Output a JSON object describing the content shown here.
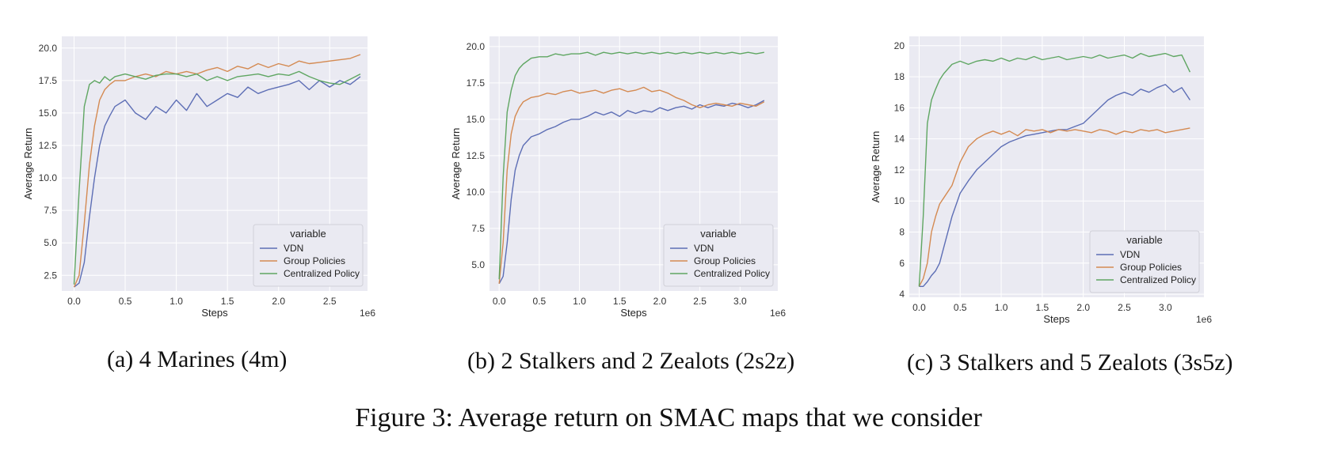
{
  "figure_caption": "Figure 3: Average return on SMAC maps that we consider",
  "panel_captions": [
    "(a) 4 Marines (4m)",
    "(b) 2 Stalkers and 2 Zealots (2s2z)",
    "(c) 3 Stalkers and 5 Zealots (3s5z)"
  ],
  "colors": {
    "VDN": "#5d6eb5",
    "Group Policies": "#d48a52",
    "Centralized Policy": "#5fa662",
    "plot_bg": "#eaeaf2",
    "grid": "#ffffff"
  },
  "chart_data": [
    {
      "type": "line",
      "xlabel": "Steps",
      "ylabel": "Average Return",
      "x_multiplier": "1e6",
      "xlim": [
        -0.12,
        2.87
      ],
      "ylim": [
        1.3,
        20.9
      ],
      "xticks": [
        0.0,
        0.5,
        1.0,
        1.5,
        2.0,
        2.5
      ],
      "xtick_labels": [
        "0.0",
        "0.5",
        "1.0",
        "1.5",
        "2.0",
        "2.5"
      ],
      "yticks": [
        2.5,
        5.0,
        7.5,
        10.0,
        12.5,
        15.0,
        17.5,
        20.0
      ],
      "ytick_labels": [
        "2.5",
        "5.0",
        "7.5",
        "10.0",
        "12.5",
        "15.0",
        "17.5",
        "20.0"
      ],
      "grid": true,
      "legend": {
        "title": "variable",
        "position": "lower-right",
        "entries": [
          "VDN",
          "Group Policies",
          "Centralized Policy"
        ]
      },
      "series": [
        {
          "name": "VDN",
          "x": [
            0.0,
            0.05,
            0.1,
            0.15,
            0.2,
            0.25,
            0.3,
            0.35,
            0.4,
            0.5,
            0.6,
            0.7,
            0.8,
            0.9,
            1.0,
            1.1,
            1.2,
            1.3,
            1.4,
            1.5,
            1.6,
            1.7,
            1.8,
            1.9,
            2.0,
            2.1,
            2.2,
            2.3,
            2.4,
            2.5,
            2.6,
            2.7,
            2.8
          ],
          "y": [
            1.6,
            1.9,
            3.5,
            7.0,
            10.0,
            12.5,
            14.0,
            14.8,
            15.5,
            16.0,
            15.0,
            14.5,
            15.5,
            15.0,
            16.0,
            15.2,
            16.5,
            15.5,
            16.0,
            16.5,
            16.2,
            17.0,
            16.5,
            16.8,
            17.0,
            17.2,
            17.5,
            16.8,
            17.5,
            17.0,
            17.5,
            17.2,
            17.8
          ]
        },
        {
          "name": "Group Policies",
          "x": [
            0.0,
            0.05,
            0.1,
            0.15,
            0.2,
            0.25,
            0.3,
            0.35,
            0.4,
            0.5,
            0.6,
            0.7,
            0.8,
            0.9,
            1.0,
            1.1,
            1.2,
            1.3,
            1.4,
            1.5,
            1.6,
            1.7,
            1.8,
            1.9,
            2.0,
            2.1,
            2.2,
            2.3,
            2.4,
            2.5,
            2.6,
            2.7,
            2.8
          ],
          "y": [
            1.6,
            2.5,
            6.5,
            11.0,
            14.0,
            16.0,
            16.8,
            17.2,
            17.5,
            17.5,
            17.8,
            18.0,
            17.8,
            18.2,
            18.0,
            18.2,
            18.0,
            18.3,
            18.5,
            18.2,
            18.6,
            18.4,
            18.8,
            18.5,
            18.8,
            18.6,
            19.0,
            18.8,
            18.9,
            19.0,
            19.1,
            19.2,
            19.5
          ]
        },
        {
          "name": "Centralized Policy",
          "x": [
            0.0,
            0.05,
            0.1,
            0.15,
            0.2,
            0.25,
            0.3,
            0.35,
            0.4,
            0.5,
            0.6,
            0.7,
            0.8,
            0.9,
            1.0,
            1.1,
            1.2,
            1.3,
            1.4,
            1.5,
            1.6,
            1.7,
            1.8,
            1.9,
            2.0,
            2.1,
            2.2,
            2.3,
            2.4,
            2.5,
            2.6,
            2.7,
            2.8
          ],
          "y": [
            1.8,
            9.0,
            15.5,
            17.2,
            17.5,
            17.3,
            17.8,
            17.5,
            17.8,
            18.0,
            17.8,
            17.6,
            17.9,
            18.0,
            18.0,
            17.8,
            18.0,
            17.5,
            17.8,
            17.5,
            17.8,
            17.9,
            18.0,
            17.8,
            18.0,
            17.9,
            18.2,
            17.8,
            17.5,
            17.3,
            17.2,
            17.6,
            18.0
          ]
        }
      ]
    },
    {
      "type": "line",
      "xlabel": "Steps",
      "ylabel": "Average Return",
      "x_multiplier": "1e6",
      "xlim": [
        -0.12,
        3.47
      ],
      "ylim": [
        3.2,
        20.7
      ],
      "xticks": [
        0.0,
        0.5,
        1.0,
        1.5,
        2.0,
        2.5,
        3.0
      ],
      "xtick_labels": [
        "0.0",
        "0.5",
        "1.0",
        "1.5",
        "2.0",
        "2.5",
        "3.0"
      ],
      "yticks": [
        5.0,
        7.5,
        10.0,
        12.5,
        15.0,
        17.5,
        20.0
      ],
      "ytick_labels": [
        "5.0",
        "7.5",
        "10.0",
        "12.5",
        "15.0",
        "17.5",
        "20.0"
      ],
      "grid": true,
      "legend": {
        "title": "variable",
        "position": "lower-right",
        "entries": [
          "VDN",
          "Group Policies",
          "Centralized Policy"
        ]
      },
      "series": [
        {
          "name": "VDN",
          "x": [
            0.0,
            0.05,
            0.1,
            0.15,
            0.2,
            0.25,
            0.3,
            0.4,
            0.5,
            0.6,
            0.7,
            0.8,
            0.9,
            1.0,
            1.1,
            1.2,
            1.3,
            1.4,
            1.5,
            1.6,
            1.7,
            1.8,
            1.9,
            2.0,
            2.1,
            2.2,
            2.3,
            2.4,
            2.5,
            2.6,
            2.7,
            2.8,
            2.9,
            3.0,
            3.1,
            3.2,
            3.3
          ],
          "y": [
            3.7,
            4.2,
            6.5,
            9.5,
            11.5,
            12.5,
            13.2,
            13.8,
            14.0,
            14.3,
            14.5,
            14.8,
            15.0,
            15.0,
            15.2,
            15.5,
            15.3,
            15.5,
            15.2,
            15.6,
            15.4,
            15.6,
            15.5,
            15.8,
            15.6,
            15.8,
            15.9,
            15.7,
            16.0,
            15.8,
            16.0,
            15.9,
            16.1,
            16.0,
            15.8,
            16.0,
            16.3
          ]
        },
        {
          "name": "Group Policies",
          "x": [
            0.0,
            0.05,
            0.1,
            0.15,
            0.2,
            0.25,
            0.3,
            0.4,
            0.5,
            0.6,
            0.7,
            0.8,
            0.9,
            1.0,
            1.1,
            1.2,
            1.3,
            1.4,
            1.5,
            1.6,
            1.7,
            1.8,
            1.9,
            2.0,
            2.1,
            2.2,
            2.3,
            2.4,
            2.5,
            2.6,
            2.7,
            2.8,
            2.9,
            3.0,
            3.1,
            3.2,
            3.3
          ],
          "y": [
            3.7,
            6.5,
            11.5,
            14.0,
            15.2,
            15.8,
            16.2,
            16.5,
            16.6,
            16.8,
            16.7,
            16.9,
            17.0,
            16.8,
            16.9,
            17.0,
            16.8,
            17.0,
            17.1,
            16.9,
            17.0,
            17.2,
            16.9,
            17.0,
            16.8,
            16.5,
            16.3,
            16.0,
            15.8,
            16.0,
            16.1,
            16.0,
            15.9,
            16.1,
            16.0,
            15.9,
            16.2
          ]
        },
        {
          "name": "Centralized Policy",
          "x": [
            0.0,
            0.05,
            0.1,
            0.15,
            0.2,
            0.25,
            0.3,
            0.4,
            0.5,
            0.6,
            0.7,
            0.8,
            0.9,
            1.0,
            1.1,
            1.2,
            1.3,
            1.4,
            1.5,
            1.6,
            1.7,
            1.8,
            1.9,
            2.0,
            2.1,
            2.2,
            2.3,
            2.4,
            2.5,
            2.6,
            2.7,
            2.8,
            2.9,
            3.0,
            3.1,
            3.2,
            3.3
          ],
          "y": [
            4.0,
            11.0,
            15.5,
            17.0,
            18.0,
            18.5,
            18.8,
            19.2,
            19.3,
            19.3,
            19.5,
            19.4,
            19.5,
            19.5,
            19.6,
            19.4,
            19.6,
            19.5,
            19.6,
            19.5,
            19.6,
            19.5,
            19.6,
            19.5,
            19.6,
            19.5,
            19.6,
            19.5,
            19.6,
            19.5,
            19.6,
            19.5,
            19.6,
            19.5,
            19.6,
            19.5,
            19.6
          ]
        }
      ]
    },
    {
      "type": "line",
      "xlabel": "Steps",
      "ylabel": "Average Return",
      "x_multiplier": "1e6",
      "xlim": [
        -0.12,
        3.47
      ],
      "ylim": [
        3.8,
        20.6
      ],
      "xticks": [
        0.0,
        0.5,
        1.0,
        1.5,
        2.0,
        2.5,
        3.0
      ],
      "xtick_labels": [
        "0.0",
        "0.5",
        "1.0",
        "1.5",
        "2.0",
        "2.5",
        "3.0"
      ],
      "yticks": [
        4,
        6,
        8,
        10,
        12,
        14,
        16,
        18,
        20
      ],
      "ytick_labels": [
        "4",
        "6",
        "8",
        "10",
        "12",
        "14",
        "16",
        "18",
        "20"
      ],
      "grid": true,
      "legend": {
        "title": "variable",
        "position": "lower-right",
        "entries": [
          "VDN",
          "Group Policies",
          "Centralized Policy"
        ]
      },
      "series": [
        {
          "name": "VDN",
          "x": [
            0.0,
            0.05,
            0.1,
            0.15,
            0.2,
            0.25,
            0.3,
            0.4,
            0.5,
            0.6,
            0.7,
            0.8,
            0.9,
            1.0,
            1.1,
            1.2,
            1.3,
            1.4,
            1.5,
            1.6,
            1.7,
            1.8,
            1.9,
            2.0,
            2.1,
            2.2,
            2.3,
            2.4,
            2.5,
            2.6,
            2.7,
            2.8,
            2.9,
            3.0,
            3.1,
            3.2,
            3.3
          ],
          "y": [
            4.5,
            4.5,
            4.8,
            5.2,
            5.5,
            6.0,
            7.0,
            9.0,
            10.5,
            11.3,
            12.0,
            12.5,
            13.0,
            13.5,
            13.8,
            14.0,
            14.2,
            14.3,
            14.4,
            14.5,
            14.6,
            14.6,
            14.8,
            15.0,
            15.5,
            16.0,
            16.5,
            16.8,
            17.0,
            16.8,
            17.2,
            17.0,
            17.3,
            17.5,
            17.0,
            17.3,
            16.5
          ]
        },
        {
          "name": "Group Policies",
          "x": [
            0.0,
            0.05,
            0.1,
            0.15,
            0.2,
            0.25,
            0.3,
            0.4,
            0.5,
            0.6,
            0.7,
            0.8,
            0.9,
            1.0,
            1.1,
            1.2,
            1.3,
            1.4,
            1.5,
            1.6,
            1.7,
            1.8,
            1.9,
            2.0,
            2.1,
            2.2,
            2.3,
            2.4,
            2.5,
            2.6,
            2.7,
            2.8,
            2.9,
            3.0,
            3.1,
            3.2,
            3.3
          ],
          "y": [
            4.5,
            5.0,
            6.0,
            8.0,
            9.0,
            9.8,
            10.2,
            11.0,
            12.5,
            13.5,
            14.0,
            14.3,
            14.5,
            14.3,
            14.5,
            14.2,
            14.6,
            14.5,
            14.6,
            14.4,
            14.6,
            14.5,
            14.6,
            14.5,
            14.4,
            14.6,
            14.5,
            14.3,
            14.5,
            14.4,
            14.6,
            14.5,
            14.6,
            14.4,
            14.5,
            14.6,
            14.7
          ]
        },
        {
          "name": "Centralized Policy",
          "x": [
            0.0,
            0.05,
            0.1,
            0.15,
            0.2,
            0.25,
            0.3,
            0.4,
            0.5,
            0.6,
            0.7,
            0.8,
            0.9,
            1.0,
            1.1,
            1.2,
            1.3,
            1.4,
            1.5,
            1.6,
            1.7,
            1.8,
            1.9,
            2.0,
            2.1,
            2.2,
            2.3,
            2.4,
            2.5,
            2.6,
            2.7,
            2.8,
            2.9,
            3.0,
            3.1,
            3.2,
            3.3
          ],
          "y": [
            4.5,
            9.0,
            15.0,
            16.5,
            17.2,
            17.8,
            18.2,
            18.8,
            19.0,
            18.8,
            19.0,
            19.1,
            19.0,
            19.2,
            19.0,
            19.2,
            19.1,
            19.3,
            19.1,
            19.2,
            19.3,
            19.1,
            19.2,
            19.3,
            19.2,
            19.4,
            19.2,
            19.3,
            19.4,
            19.2,
            19.5,
            19.3,
            19.4,
            19.5,
            19.3,
            19.4,
            18.3
          ]
        }
      ]
    }
  ]
}
